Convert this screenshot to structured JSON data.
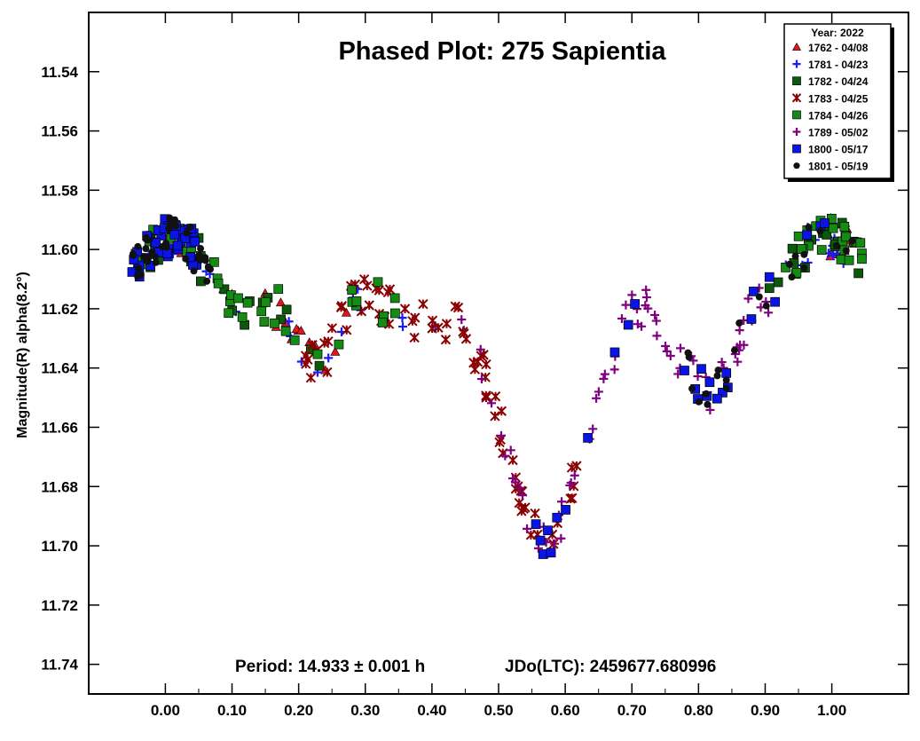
{
  "chart_data": {
    "type": "scatter",
    "title": "Phased Plot: 275 Sapientia",
    "ylabel": "Magnitude(R) alpha(8.2°)",
    "xlabel": "",
    "footer": {
      "period": "Period: 14.933 ± 0.001 h",
      "jdo": "JDo(LTC): 2459677.680996"
    },
    "x_ticks": [
      "0.00",
      "0.10",
      "0.20",
      "0.30",
      "0.40",
      "0.50",
      "0.60",
      "0.70",
      "0.80",
      "0.90",
      "1.00"
    ],
    "y_ticks": [
      "11.54",
      "11.56",
      "11.58",
      "11.60",
      "11.62",
      "11.64",
      "11.66",
      "11.68",
      "11.70",
      "11.72",
      "11.74"
    ],
    "xlim": [
      -0.115,
      1.115
    ],
    "ylim": [
      11.75,
      11.52
    ],
    "y_reversed": true,
    "grid": false,
    "legend": {
      "title": "Year: 2022",
      "position": "top-right",
      "entries": [
        {
          "label": "1762 - 04/08",
          "marker": "triangle",
          "color": "#e8141c"
        },
        {
          "label": "1781 - 04/23",
          "marker": "plus",
          "color": "#1a1aff"
        },
        {
          "label": "1782 - 04/24",
          "marker": "square",
          "color": "#0a5a0a"
        },
        {
          "label": "1783 - 04/25",
          "marker": "asterisk",
          "color": "#8b0000"
        },
        {
          "label": "1784 - 04/26",
          "marker": "square",
          "color": "#148c14"
        },
        {
          "label": "1789 - 05/02",
          "marker": "plus",
          "color": "#800080"
        },
        {
          "label": "1800 - 05/17",
          "marker": "square",
          "color": "#0a14e6"
        },
        {
          "label": "1801 - 05/19",
          "marker": "circle",
          "color": "#111111"
        }
      ]
    },
    "curve_points": [
      [
        -0.05,
        11.608
      ],
      [
        -0.02,
        11.6
      ],
      [
        0.0,
        11.596
      ],
      [
        0.02,
        11.595
      ],
      [
        0.04,
        11.6
      ],
      [
        0.06,
        11.606
      ],
      [
        0.08,
        11.612
      ],
      [
        0.1,
        11.616
      ],
      [
        0.12,
        11.619
      ],
      [
        0.14,
        11.619
      ],
      [
        0.16,
        11.618
      ],
      [
        0.18,
        11.622
      ],
      [
        0.2,
        11.63
      ],
      [
        0.22,
        11.637
      ],
      [
        0.24,
        11.636
      ],
      [
        0.26,
        11.627
      ],
      [
        0.28,
        11.618
      ],
      [
        0.3,
        11.614
      ],
      [
        0.32,
        11.617
      ],
      [
        0.34,
        11.621
      ],
      [
        0.36,
        11.624
      ],
      [
        0.38,
        11.625
      ],
      [
        0.4,
        11.624
      ],
      [
        0.42,
        11.625
      ],
      [
        0.44,
        11.625
      ],
      [
        0.46,
        11.631
      ],
      [
        0.48,
        11.643
      ],
      [
        0.5,
        11.657
      ],
      [
        0.52,
        11.674
      ],
      [
        0.54,
        11.688
      ],
      [
        0.56,
        11.697
      ],
      [
        0.58,
        11.697
      ],
      [
        0.6,
        11.688
      ],
      [
        0.62,
        11.672
      ],
      [
        0.64,
        11.656
      ],
      [
        0.66,
        11.642
      ],
      [
        0.68,
        11.63
      ],
      [
        0.7,
        11.622
      ],
      [
        0.72,
        11.62
      ],
      [
        0.74,
        11.625
      ],
      [
        0.76,
        11.632
      ],
      [
        0.78,
        11.64
      ],
      [
        0.8,
        11.646
      ],
      [
        0.82,
        11.65
      ],
      [
        0.84,
        11.643
      ],
      [
        0.86,
        11.63
      ],
      [
        0.88,
        11.621
      ],
      [
        0.9,
        11.616
      ],
      [
        0.92,
        11.611
      ],
      [
        0.94,
        11.605
      ],
      [
        0.96,
        11.6
      ],
      [
        0.98,
        11.597
      ],
      [
        1.0,
        11.596
      ],
      [
        1.02,
        11.598
      ],
      [
        1.05,
        11.604
      ]
    ],
    "series_ranges": [
      {
        "name": "1762 - 04/08",
        "x": [
          -0.03,
          0.28
        ],
        "wrap": [
          0.96,
          1.05
        ],
        "n": 34
      },
      {
        "name": "1781 - 04/23",
        "x": [
          -0.03,
          0.45
        ],
        "wrap": [
          0.93,
          1.04
        ],
        "n": 34
      },
      {
        "name": "1782 - 04/24",
        "x": [
          -0.05,
          0.24
        ],
        "wrap": [
          0.9,
          1.05
        ],
        "n": 40
      },
      {
        "name": "1783 - 04/25",
        "x": [
          0.2,
          0.62
        ],
        "n": 78
      },
      {
        "name": "1784 - 04/26",
        "x": [
          -0.05,
          0.36
        ],
        "wrap": [
          0.93,
          1.05
        ],
        "n": 60
      },
      {
        "name": "1789 - 05/02",
        "x": [
          0.44,
          0.91
        ],
        "n": 72
      },
      {
        "name": "1800 - 05/17",
        "x": [
          -0.05,
          0.05
        ],
        "wrap": [
          0.55,
          1.04
        ],
        "n": 70
      },
      {
        "name": "1801 - 05/19",
        "x": [
          -0.05,
          0.07
        ],
        "wrap": [
          0.78,
          1.05
        ],
        "n": 60
      }
    ]
  }
}
